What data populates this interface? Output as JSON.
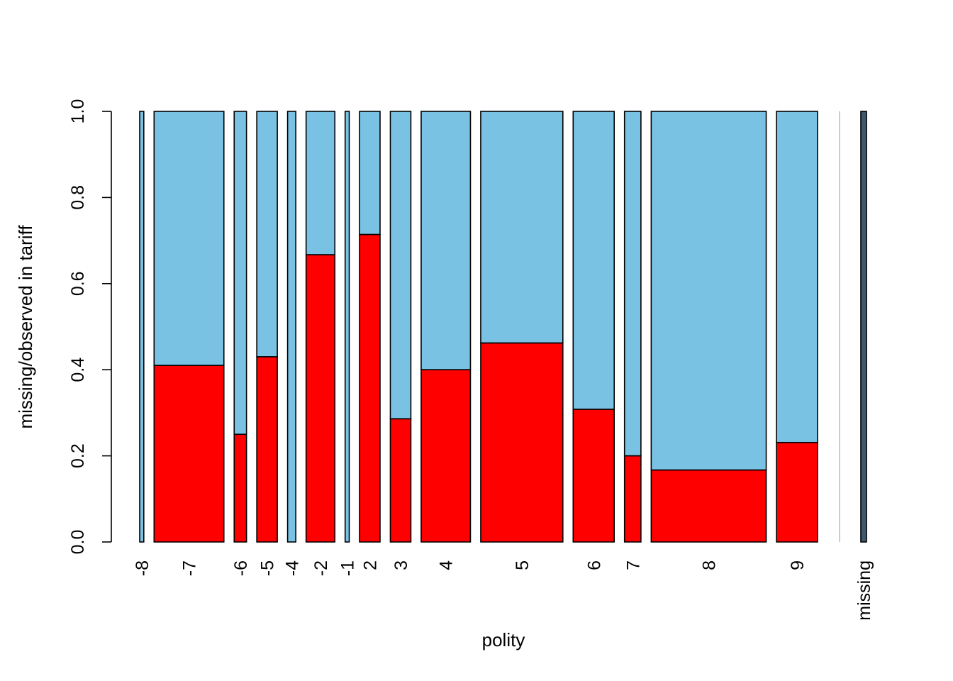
{
  "chart_data": {
    "type": "spineplot",
    "xlabel": "polity",
    "ylabel": "missing/observed in tariff",
    "ylim": [
      0,
      1
    ],
    "yticks": [
      "0.0",
      "0.2",
      "0.4",
      "0.6",
      "0.8",
      "1.0"
    ],
    "colors": {
      "missing": "#ff0000",
      "observed": "#7ac2e4",
      "missing_category": "#3d5a70",
      "separator": "#cccccc"
    },
    "categories": [
      {
        "label": "-8",
        "width": 1,
        "missing_fraction": 0.0
      },
      {
        "label": "-7",
        "width": 17,
        "missing_fraction": 0.41
      },
      {
        "label": "-6",
        "width": 3,
        "missing_fraction": 0.25
      },
      {
        "label": "-5",
        "width": 5,
        "missing_fraction": 0.43
      },
      {
        "label": "-4",
        "width": 2,
        "missing_fraction": 0.0
      },
      {
        "label": "-2",
        "width": 7,
        "missing_fraction": 0.667
      },
      {
        "label": "-1",
        "width": 1,
        "missing_fraction": 0.0
      },
      {
        "label": "2",
        "width": 5,
        "missing_fraction": 0.714
      },
      {
        "label": "3",
        "width": 5,
        "missing_fraction": 0.286
      },
      {
        "label": "4",
        "width": 12,
        "missing_fraction": 0.4
      },
      {
        "label": "5",
        "width": 20,
        "missing_fraction": 0.462
      },
      {
        "label": "6",
        "width": 10,
        "missing_fraction": 0.308
      },
      {
        "label": "7",
        "width": 4,
        "missing_fraction": 0.2
      },
      {
        "label": "8",
        "width": 28,
        "missing_fraction": 0.167
      },
      {
        "label": "9",
        "width": 10,
        "missing_fraction": 0.231
      }
    ],
    "missing_category": {
      "label": "missing",
      "width": 1,
      "missing_fraction": 0.0
    }
  }
}
